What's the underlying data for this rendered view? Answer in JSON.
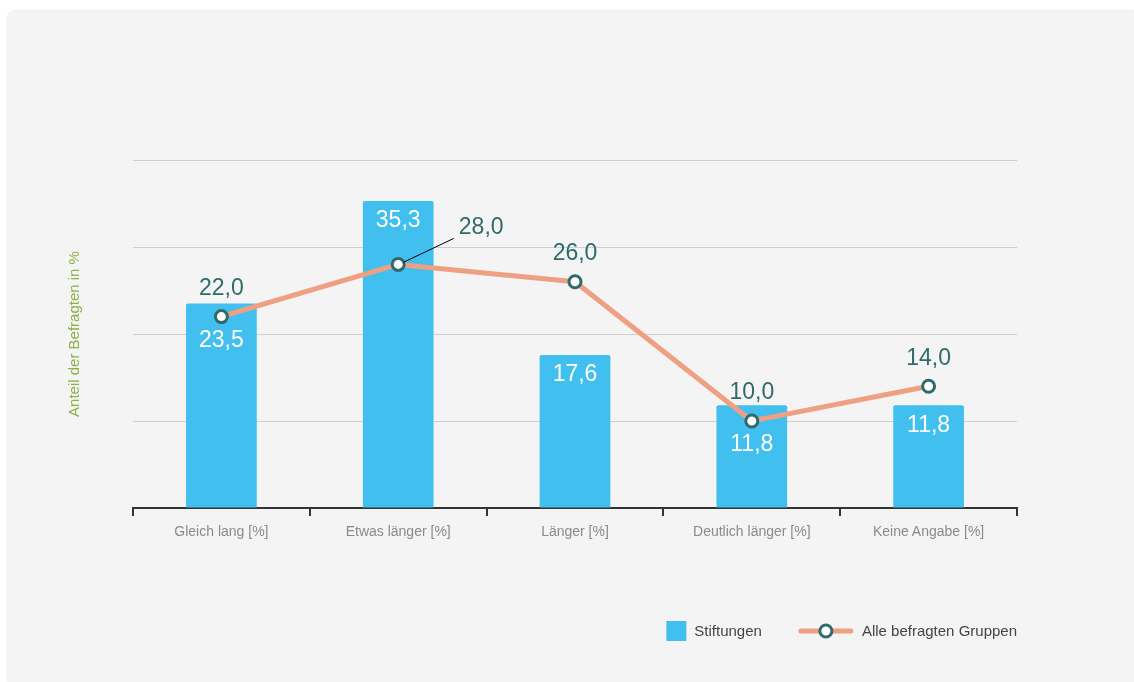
{
  "chart_data": {
    "type": "bar",
    "ylabel": "Anteil der Befragten in %",
    "categories": [
      "Gleich lang [%]",
      "Etwas länger [%]",
      "Länger [%]",
      "Deutlich länger [%]",
      "Keine Angabe [%]"
    ],
    "series": [
      {
        "name": "Stiftungen",
        "color": "#41bfee",
        "values": [
          23.5,
          35.3,
          17.6,
          11.8,
          11.8
        ],
        "value_labels": [
          "23,5",
          "35,3",
          "17,6",
          "11,8",
          "11,8"
        ]
      },
      {
        "name": "Alle befragten Gruppen",
        "type": "line",
        "color": "#ef9f82",
        "values": [
          22.0,
          28.0,
          26.0,
          10.0,
          14.0
        ],
        "value_labels": [
          "22,0",
          "28,0",
          "26,0",
          "10,0",
          "14,0"
        ]
      }
    ],
    "ylim": [
      0,
      40
    ],
    "yticks": [
      {
        "value": 0,
        "label": null
      },
      {
        "value": 10,
        "label": null
      },
      {
        "value": 20,
        "label": null
      },
      {
        "value": 30,
        "label": null
      },
      {
        "value": 40,
        "label": null
      }
    ],
    "grid": "y",
    "legend": "bottom right",
    "tick_labels": "x",
    "marker": "circle"
  }
}
